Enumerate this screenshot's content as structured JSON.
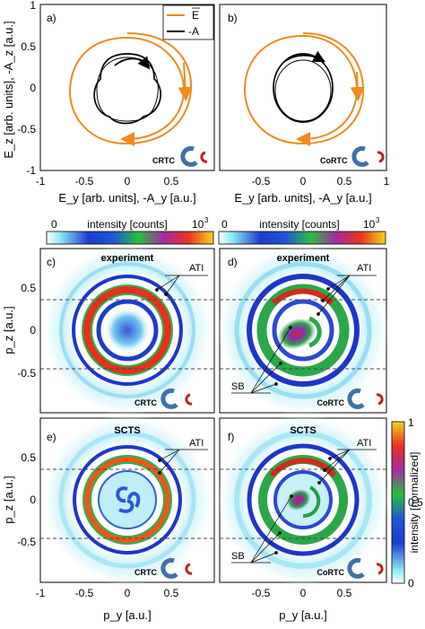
{
  "panels": {
    "a": {
      "label": "a)",
      "tag": "CRTC"
    },
    "b": {
      "label": "b)",
      "tag": "CoRTC"
    },
    "c": {
      "label": "c)",
      "title": "experiment",
      "tag": "CRTC",
      "ati": "ATI"
    },
    "d": {
      "label": "d)",
      "title": "experiment",
      "tag": "CoRTC",
      "ati": "ATI",
      "sb": "SB"
    },
    "e": {
      "label": "e)",
      "title": "SCTS",
      "tag": "CRTC",
      "ati": "ATI"
    },
    "f": {
      "label": "f)",
      "title": "SCTS",
      "tag": "CoRTC",
      "ati": "ATI",
      "sb": "SB"
    }
  },
  "legend": {
    "e_label": "E",
    "a_label": "-A",
    "e_color": "#F08A1C",
    "a_color": "#000000"
  },
  "axes": {
    "top_ylabel": "E_z [arb. units], -A_z [a.u.]",
    "top_xlabel": "E_y [arb. units], -A_y [a.u.]",
    "top_yticks": [
      "1",
      "0.5",
      "0",
      "-0.5",
      "-1"
    ],
    "top_xticks_left": [
      "-1",
      "-0.5",
      "0",
      "0.5"
    ],
    "top_xticks_right": [
      "-0.5",
      "0",
      "0.5",
      "1"
    ],
    "p_ylabel": "p_z [a.u.]",
    "p_xlabel": "p_y [a.u.]",
    "p_yticks": [
      "0.5",
      "0",
      "-0.5"
    ],
    "p_xticks_left": [
      "-1",
      "-0.5",
      "0",
      "0.5"
    ],
    "p_xticks_right": [
      "-0.5",
      "0",
      "0.5"
    ]
  },
  "colorbars": {
    "intensity_label": "intensity [counts]",
    "min": "0",
    "max": "10",
    "max_exp": "3",
    "norm_label": "intensity [normalized]",
    "norm_ticks": [
      "1",
      "0.5",
      "0"
    ]
  },
  "colors": {
    "orange": "#F08A1C",
    "blue_logo": "#3B72A8",
    "red_logo": "#C0201E"
  },
  "chart_data": [
    {
      "type": "line",
      "panel": "a",
      "xlim": [
        -1,
        1
      ],
      "ylim": [
        -1,
        1
      ],
      "series": [
        {
          "name": "E",
          "shape": "rotating spiral ~radius 0.65"
        },
        {
          "name": "-A",
          "shape": "trefoil ~radius 0.4"
        }
      ]
    },
    {
      "type": "line",
      "panel": "b",
      "xlim": [
        -1,
        1
      ],
      "ylim": [
        -1,
        1
      ],
      "series": [
        {
          "name": "E",
          "shape": "co-rotating spiral ~radius 0.65"
        },
        {
          "name": "-A",
          "shape": "near-circle ~radius 0.4"
        }
      ]
    },
    {
      "type": "heatmap",
      "panel": "c",
      "xlim": [
        -1,
        1
      ],
      "ylim": [
        -1,
        1
      ],
      "ring_radii": [
        0.33,
        0.45,
        0.6
      ],
      "dashed_lines_pz": [
        0.37,
        -0.47
      ]
    },
    {
      "type": "heatmap",
      "panel": "d",
      "xlim": [
        -1,
        1
      ],
      "ylim": [
        -1,
        1
      ],
      "ring_radii": [
        0.33,
        0.45,
        0.6
      ],
      "dashed_lines_pz": [
        0.37,
        -0.47
      ]
    },
    {
      "type": "heatmap",
      "panel": "e",
      "xlim": [
        -1,
        1
      ],
      "ylim": [
        -1,
        1
      ],
      "ring_radii": [
        0.3,
        0.45,
        0.6
      ],
      "dashed_lines_pz": [
        0.37,
        -0.47
      ]
    },
    {
      "type": "heatmap",
      "panel": "f",
      "xlim": [
        -1,
        1
      ],
      "ylim": [
        -1,
        1
      ],
      "ring_radii": [
        0.3,
        0.45,
        0.6
      ],
      "dashed_lines_pz": [
        0.37,
        -0.47
      ]
    }
  ]
}
